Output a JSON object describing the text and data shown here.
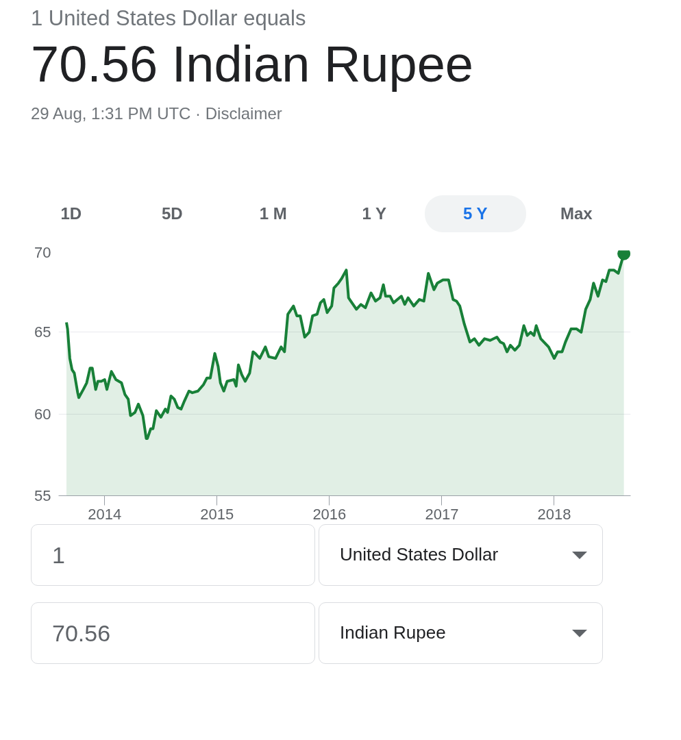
{
  "chart_data": {
    "type": "area",
    "title": "70.56 Indian Rupee",
    "subtitle": "29 Aug, 1:31 PM UTC · Disclaimer",
    "annotations": [
      "1 United States Dollar equals",
      "1D",
      "5D",
      "1 M",
      "1 Y",
      "5 Y",
      "Max",
      "1",
      "United States Dollar",
      "70.56",
      "Indian Rupee"
    ],
    "xlim": [
      2013.59,
      2018.68
    ],
    "xticks": [
      2014,
      2015,
      2016,
      2017,
      2018
    ],
    "ylim": [
      55,
      70
    ],
    "yticks": [
      55,
      60,
      65,
      70
    ],
    "grid": "y",
    "series": [
      {
        "color": "#188038",
        "x": [
          2013.66,
          2013.67,
          2013.69,
          2013.71,
          2013.73,
          2013.76,
          2013.77,
          2013.81,
          2013.84,
          2013.87,
          2013.89,
          2013.92,
          2013.94,
          2013.97,
          2014.0,
          2014.02,
          2014.06,
          2014.1,
          2014.15,
          2014.18,
          2014.21,
          2014.23,
          2014.27,
          2014.3,
          2014.34,
          2014.37,
          2014.38,
          2014.41,
          2014.43,
          2014.46,
          2014.5,
          2014.54,
          2014.56,
          2014.59,
          2014.62,
          2014.65,
          2014.68,
          2014.71,
          2014.75,
          2014.78,
          2014.83,
          2014.88,
          2014.91,
          2014.94,
          2014.98,
          2015.01,
          2015.03,
          2015.06,
          2015.09,
          2015.15,
          2015.17,
          2015.19,
          2015.22,
          2015.25,
          2015.29,
          2015.32,
          2015.34,
          2015.38,
          2015.43,
          2015.46,
          2015.52,
          2015.57,
          2015.6,
          2015.63,
          2015.68,
          2015.71,
          2015.74,
          2015.78,
          2015.82,
          2015.85,
          2015.89,
          2015.92,
          2015.95,
          2015.98,
          2016.02,
          2016.04,
          2016.08,
          2016.11,
          2016.15,
          2016.17,
          2016.2,
          2016.24,
          2016.28,
          2016.32,
          2016.37,
          2016.41,
          2016.45,
          2016.48,
          2016.5,
          2016.54,
          2016.57,
          2016.64,
          2016.67,
          2016.7,
          2016.75,
          2016.8,
          2016.84,
          2016.88,
          2016.93,
          2016.96,
          2017.01,
          2017.06,
          2017.1,
          2017.13,
          2017.16,
          2017.2,
          2017.25,
          2017.29,
          2017.33,
          2017.38,
          2017.43,
          2017.49,
          2017.52,
          2017.55,
          2017.58,
          2017.61,
          2017.65,
          2017.69,
          2017.73,
          2017.76,
          2017.79,
          2017.82,
          2017.84,
          2017.88,
          2017.95,
          2018.0,
          2018.03,
          2018.07,
          2018.1,
          2018.15,
          2018.2,
          2018.24,
          2018.28,
          2018.32,
          2018.35,
          2018.39,
          2018.43,
          2018.46,
          2018.49,
          2018.53,
          2018.57,
          2018.62
        ],
        "values": [
          65.6,
          65.2,
          63.4,
          62.7,
          62.5,
          61.3,
          61.0,
          61.5,
          61.9,
          62.8,
          62.8,
          61.5,
          62.0,
          62.0,
          62.1,
          61.5,
          62.6,
          62.1,
          61.9,
          61.2,
          60.9,
          59.9,
          60.1,
          60.6,
          59.9,
          58.5,
          58.5,
          59.1,
          59.1,
          60.2,
          59.8,
          60.3,
          60.1,
          61.1,
          60.9,
          60.4,
          60.3,
          60.8,
          61.4,
          61.3,
          61.4,
          61.8,
          62.2,
          62.2,
          63.7,
          62.9,
          61.9,
          61.4,
          62.0,
          62.1,
          61.7,
          63.0,
          62.4,
          62.0,
          62.5,
          63.8,
          63.7,
          63.4,
          64.1,
          63.5,
          63.4,
          64.1,
          63.8,
          66.1,
          66.6,
          66.0,
          66.0,
          64.7,
          65.0,
          66.0,
          66.1,
          66.8,
          67.0,
          66.2,
          66.6,
          67.7,
          68.0,
          68.3,
          68.8,
          67.1,
          66.8,
          66.4,
          66.7,
          66.5,
          67.4,
          66.9,
          67.1,
          67.9,
          67.2,
          67.2,
          66.8,
          67.2,
          66.7,
          67.1,
          66.6,
          67.0,
          66.9,
          68.6,
          67.6,
          68.0,
          68.2,
          68.2,
          67.0,
          66.9,
          66.6,
          65.5,
          64.4,
          64.6,
          64.2,
          64.6,
          64.5,
          64.7,
          64.4,
          64.3,
          63.8,
          64.2,
          63.9,
          64.2,
          65.4,
          64.8,
          65.0,
          64.8,
          65.4,
          64.6,
          64.1,
          63.4,
          63.8,
          63.8,
          64.4,
          65.2,
          65.2,
          65.0,
          66.4,
          67.0,
          68.0,
          67.2,
          68.2,
          68.1,
          68.8,
          68.8,
          68.6,
          69.8
        ]
      },
      {
        "type": "scatter",
        "color": "#188038",
        "marker": "circle",
        "x": [
          2018.62
        ],
        "values": [
          69.8
        ]
      }
    ]
  }
}
